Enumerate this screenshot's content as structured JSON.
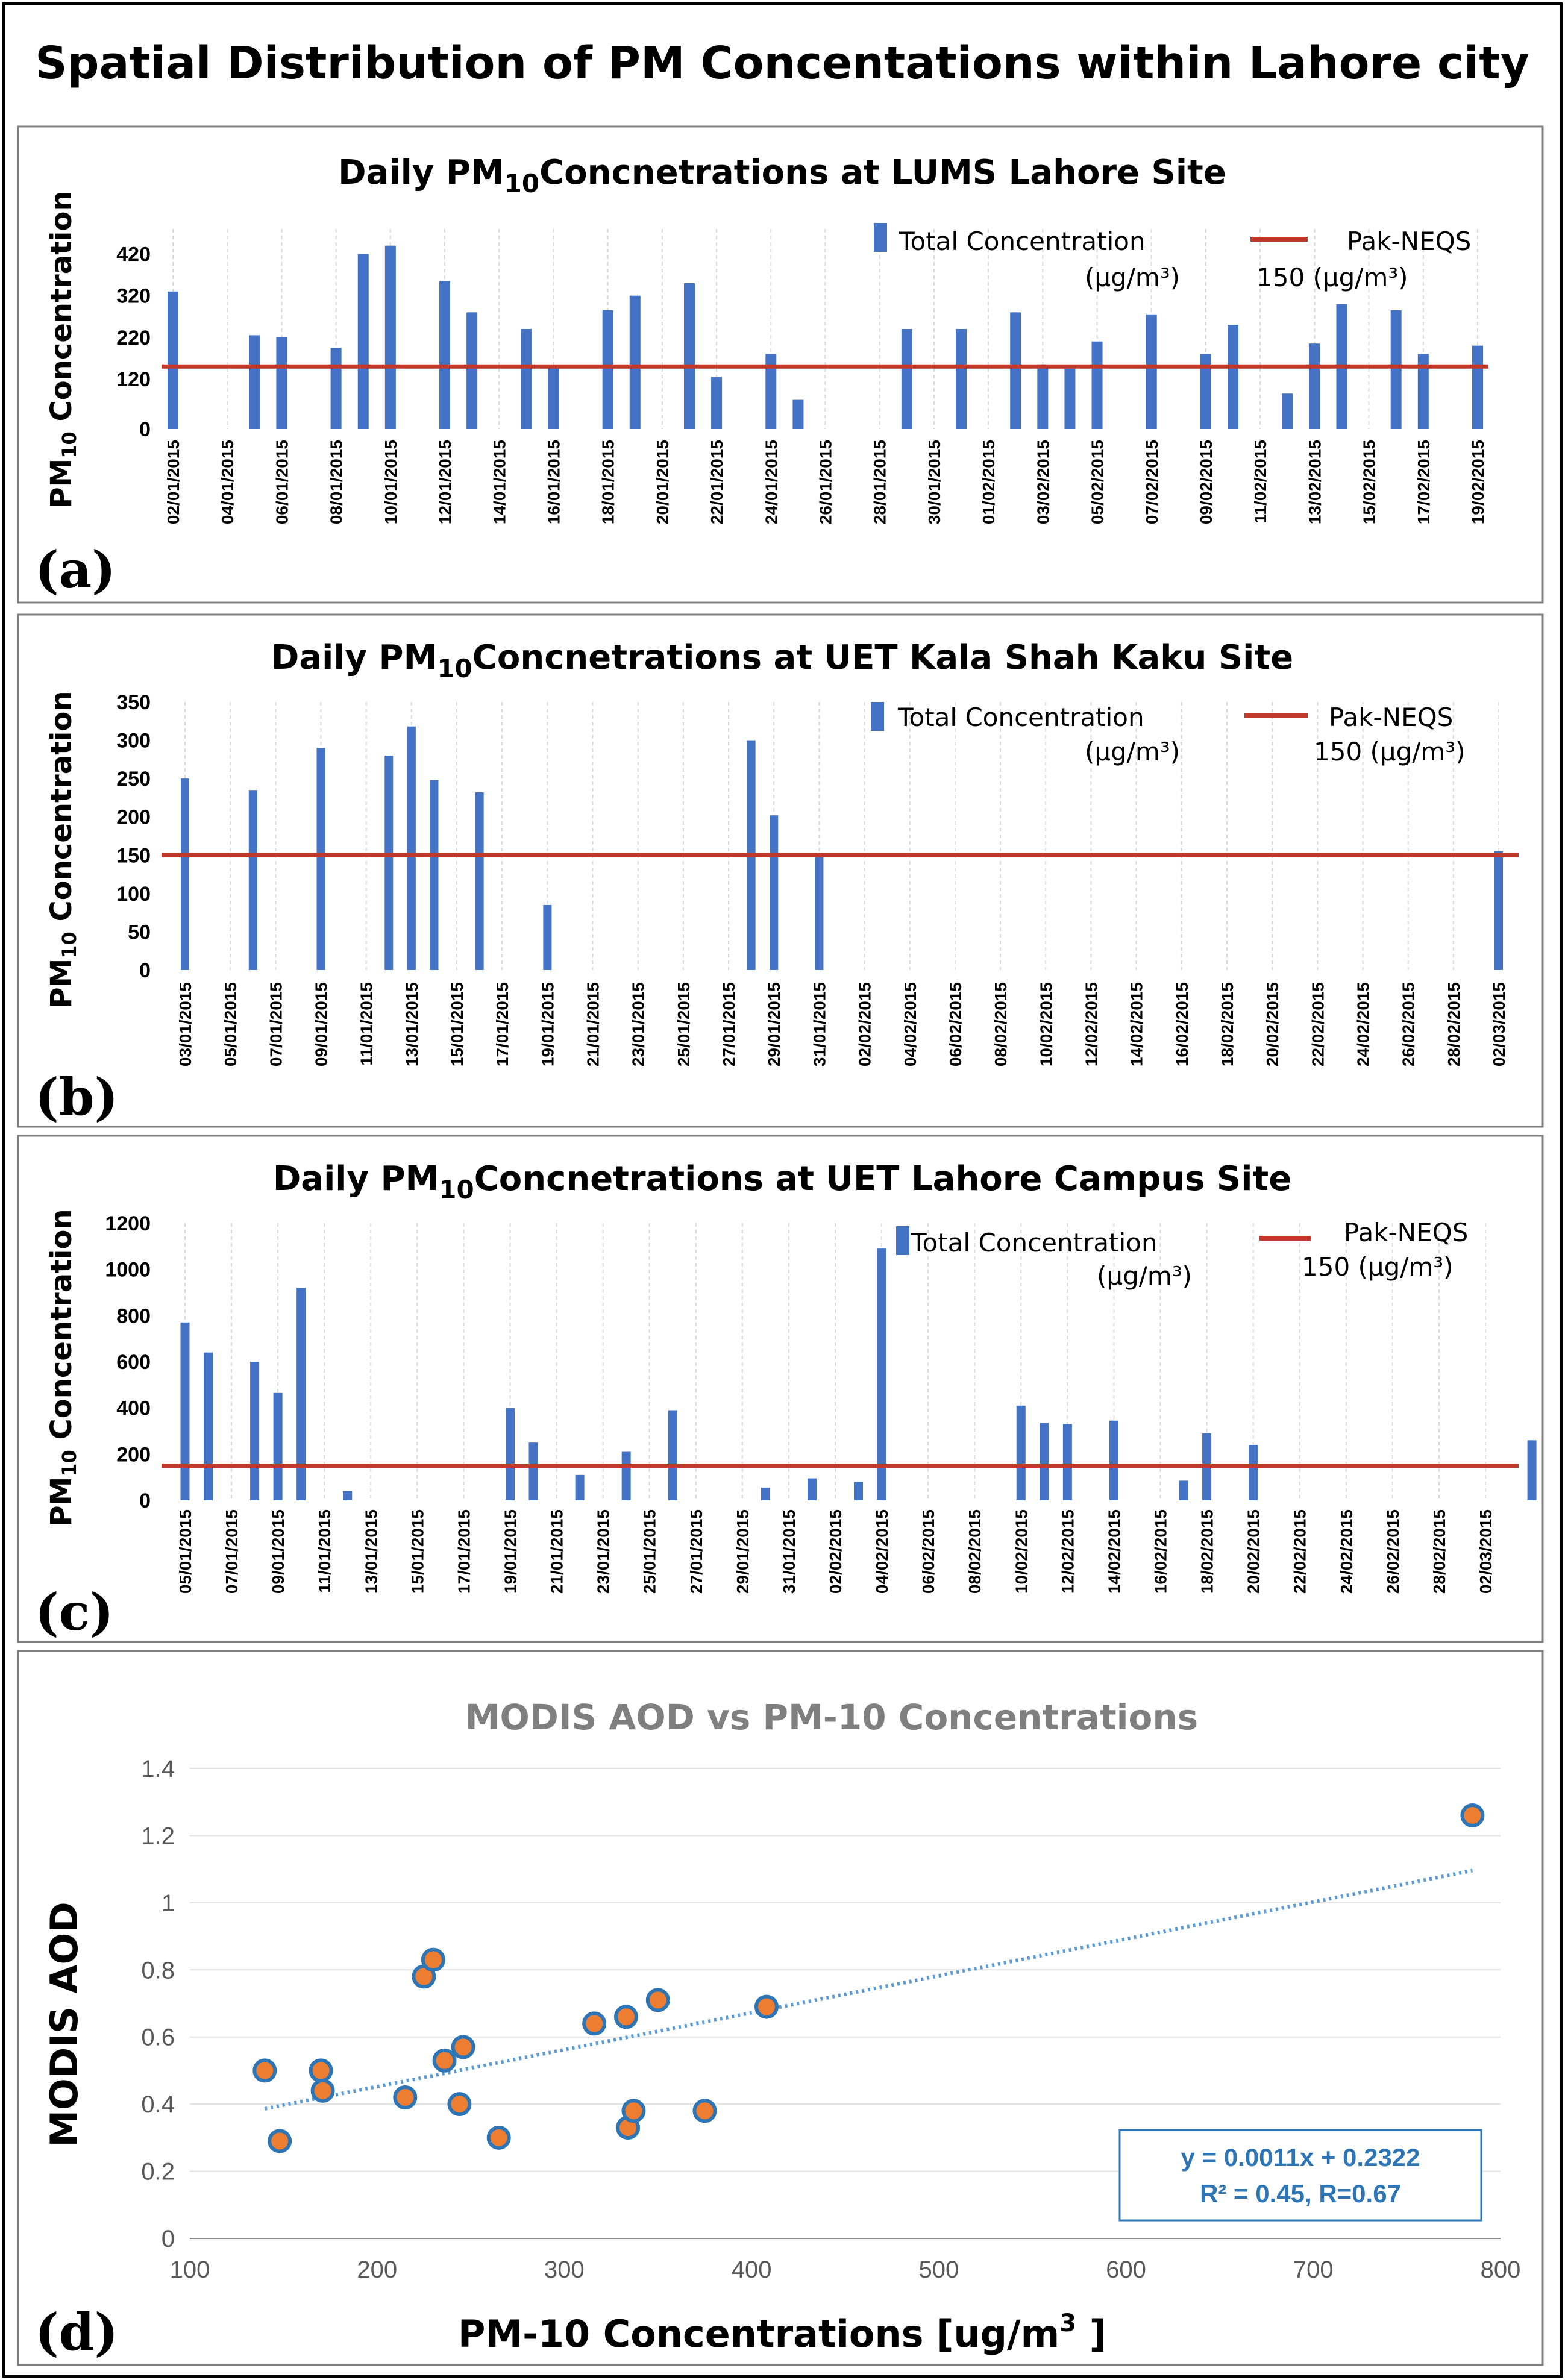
{
  "figure": {
    "main_title": "Spatial Distribution of PM Concentations within Lahore city"
  },
  "colors": {
    "bar": "#4472c4",
    "standard_line": "#c0392b",
    "point_fill": "#ed7d31",
    "point_edge": "#2e75b6",
    "trendline": "#5b9bd5"
  },
  "chart_data": [
    {
      "type": "bar",
      "panel_label": "(a)",
      "title_prefix": "Daily PM",
      "title_sub": "10",
      "title_suffix": "Concnetrations at LUMS Lahore Site",
      "ylabel_main": "PM",
      "ylabel_sub": "10",
      "ylabel_rest": " Concentration",
      "ylim": [
        0,
        480
      ],
      "yticks": [
        0,
        120,
        220,
        320,
        420
      ],
      "xticks": [
        "02/01/2015",
        "04/01/2015",
        "06/01/2015",
        "08/01/2015",
        "10/01/2015",
        "12/01/2015",
        "14/01/2015",
        "16/01/2015",
        "18/01/2015",
        "20/01/2015",
        "22/01/2015",
        "24/01/2015",
        "26/01/2015",
        "28/01/2015",
        "30/01/2015",
        "01/02/2015",
        "03/02/2015",
        "05/02/2015",
        "07/02/2015",
        "09/02/2015",
        "11/02/2015",
        "13/02/2015",
        "15/02/2015",
        "17/02/2015",
        "19/02/2015"
      ],
      "series": [
        {
          "name": "Total Concentration",
          "unit_line": "(μg/m³)",
          "x": [
            "02/01/2015",
            "05/01/2015",
            "06/01/2015",
            "08/01/2015",
            "09/01/2015",
            "10/01/2015",
            "12/01/2015",
            "13/01/2015",
            "15/01/2015",
            "16/01/2015",
            "18/01/2015",
            "19/01/2015",
            "21/01/2015",
            "22/01/2015",
            "24/01/2015",
            "25/01/2015",
            "29/01/2015",
            "31/01/2015",
            "02/02/2015",
            "03/02/2015",
            "04/02/2015",
            "05/02/2015",
            "07/02/2015",
            "09/02/2015",
            "10/02/2015",
            "12/02/2015",
            "13/02/2015",
            "14/02/2015",
            "16/02/2015",
            "17/02/2015",
            "19/02/2015"
          ],
          "values": [
            330,
            225,
            220,
            195,
            420,
            440,
            355,
            280,
            240,
            150,
            285,
            320,
            350,
            125,
            180,
            70,
            240,
            240,
            280,
            155,
            145,
            210,
            275,
            180,
            250,
            85,
            205,
            300,
            285,
            180,
            200
          ]
        }
      ],
      "standard": {
        "name": "Pak-NEQS",
        "value": 150,
        "label_line2": "150 (μg/m³)"
      }
    },
    {
      "type": "bar",
      "panel_label": "(b)",
      "title_prefix": "Daily PM",
      "title_sub": "10",
      "title_suffix": "Concnetrations at UET Kala Shah Kaku Site",
      "ylabel_main": "PM",
      "ylabel_sub": "10",
      "ylabel_rest": " Concentration",
      "ylim": [
        0,
        350
      ],
      "yticks": [
        0,
        50,
        100,
        150,
        200,
        250,
        300,
        350
      ],
      "xticks": [
        "03/01/2015",
        "05/01/2015",
        "07/01/2015",
        "09/01/2015",
        "11/01/2015",
        "13/01/2015",
        "15/01/2015",
        "17/01/2015",
        "19/01/2015",
        "21/01/2015",
        "23/01/2015",
        "25/01/2015",
        "27/01/2015",
        "29/01/2015",
        "31/01/2015",
        "02/02/2015",
        "04/02/2015",
        "06/02/2015",
        "08/02/2015",
        "10/02/2015",
        "12/02/2015",
        "14/02/2015",
        "16/02/2015",
        "18/02/2015",
        "20/02/2015",
        "22/02/2015",
        "24/02/2015",
        "26/02/2015",
        "28/02/2015",
        "02/03/2015"
      ],
      "series": [
        {
          "name": "Total Concentration",
          "unit_line": "(μg/m³)",
          "x": [
            "03/01/2015",
            "06/01/2015",
            "09/01/2015",
            "12/01/2015",
            "13/01/2015",
            "14/01/2015",
            "16/01/2015",
            "19/01/2015",
            "28/01/2015",
            "29/01/2015",
            "31/01/2015",
            "02/03/2015"
          ],
          "values": [
            250,
            235,
            290,
            280,
            318,
            248,
            232,
            85,
            300,
            202,
            148,
            155
          ]
        }
      ],
      "standard": {
        "name": "Pak-NEQS",
        "value": 150,
        "label_line2": "150 (μg/m³)"
      }
    },
    {
      "type": "bar",
      "panel_label": "(c)",
      "title_prefix": "Daily PM",
      "title_sub": "10",
      "title_suffix": "Concnetrations at UET Lahore Campus Site",
      "ylabel_main": "PM",
      "ylabel_sub": "10",
      "ylabel_rest": " Concentration",
      "ylim": [
        0,
        1200
      ],
      "yticks": [
        0,
        200,
        400,
        600,
        800,
        1000,
        1200
      ],
      "xticks": [
        "05/01/2015",
        "07/01/2015",
        "09/01/2015",
        "11/01/2015",
        "13/01/2015",
        "15/01/2015",
        "17/01/2015",
        "19/01/2015",
        "21/01/2015",
        "23/01/2015",
        "25/01/2015",
        "27/01/2015",
        "29/01/2015",
        "31/01/2015",
        "02/02/2015",
        "04/02/2015",
        "06/02/2015",
        "08/02/2015",
        "10/02/2015",
        "12/02/2015",
        "14/02/2015",
        "16/02/2015",
        "18/02/2015",
        "20/02/2015",
        "22/02/2015",
        "24/02/2015",
        "26/02/2015",
        "28/02/2015",
        "02/03/2015"
      ],
      "series": [
        {
          "name": "Total Concentration",
          "unit_line": "(μg/m³)",
          "x": [
            "05/01/2015",
            "06/01/2015",
            "08/01/2015",
            "09/01/2015",
            "10/01/2015",
            "12/01/2015",
            "19/01/2015",
            "20/01/2015",
            "22/01/2015",
            "24/01/2015",
            "26/01/2015",
            "30/01/2015",
            "01/02/2015",
            "03/02/2015",
            "04/02/2015",
            "10/02/2015",
            "11/02/2015",
            "12/02/2015",
            "14/02/2015",
            "17/02/2015",
            "18/02/2015",
            "20/02/2015",
            "04/03/2015"
          ],
          "values": [
            770,
            640,
            600,
            465,
            920,
            40,
            400,
            250,
            110,
            210,
            390,
            55,
            95,
            80,
            1090,
            410,
            335,
            330,
            345,
            85,
            290,
            240,
            260
          ]
        }
      ],
      "standard": {
        "name": "Pak-NEQS",
        "value": 150,
        "label_line2": "150 (μg/m³)"
      }
    },
    {
      "type": "scatter",
      "panel_label": "(d)",
      "title": "MODIS AOD vs PM-10 Concentrations",
      "xlabel": "PM-10 Concentrations [ug/m",
      "xlabel_sup": "3",
      "xlabel_close": " ]",
      "ylabel": "MODIS AOD",
      "xlim": [
        100,
        800
      ],
      "ylim": [
        0,
        1.4
      ],
      "xticks": [
        100,
        200,
        300,
        400,
        500,
        600,
        700,
        800
      ],
      "yticks": [
        0,
        0.2,
        0.4,
        0.6,
        0.8,
        1,
        1.2,
        1.4
      ],
      "ytick_labels": [
        "0",
        "0.2",
        "0.4",
        "0.6",
        "0.8",
        "1",
        "1.2",
        "1.4"
      ],
      "x": [
        140,
        148,
        170,
        171,
        215,
        225,
        230,
        236,
        244,
        246,
        265,
        316,
        333,
        334,
        337,
        350,
        375,
        408,
        785
      ],
      "y": [
        0.5,
        0.29,
        0.5,
        0.44,
        0.42,
        0.78,
        0.83,
        0.53,
        0.4,
        0.57,
        0.3,
        0.64,
        0.66,
        0.33,
        0.38,
        0.71,
        0.38,
        0.69,
        1.26
      ],
      "trendline": {
        "slope": 0.0011,
        "intercept": 0.2322,
        "x_range": [
          140,
          785
        ]
      },
      "equation": "y = 0.0011x + 0.2322",
      "stats": "R² = 0.45,  R=0.67"
    }
  ]
}
